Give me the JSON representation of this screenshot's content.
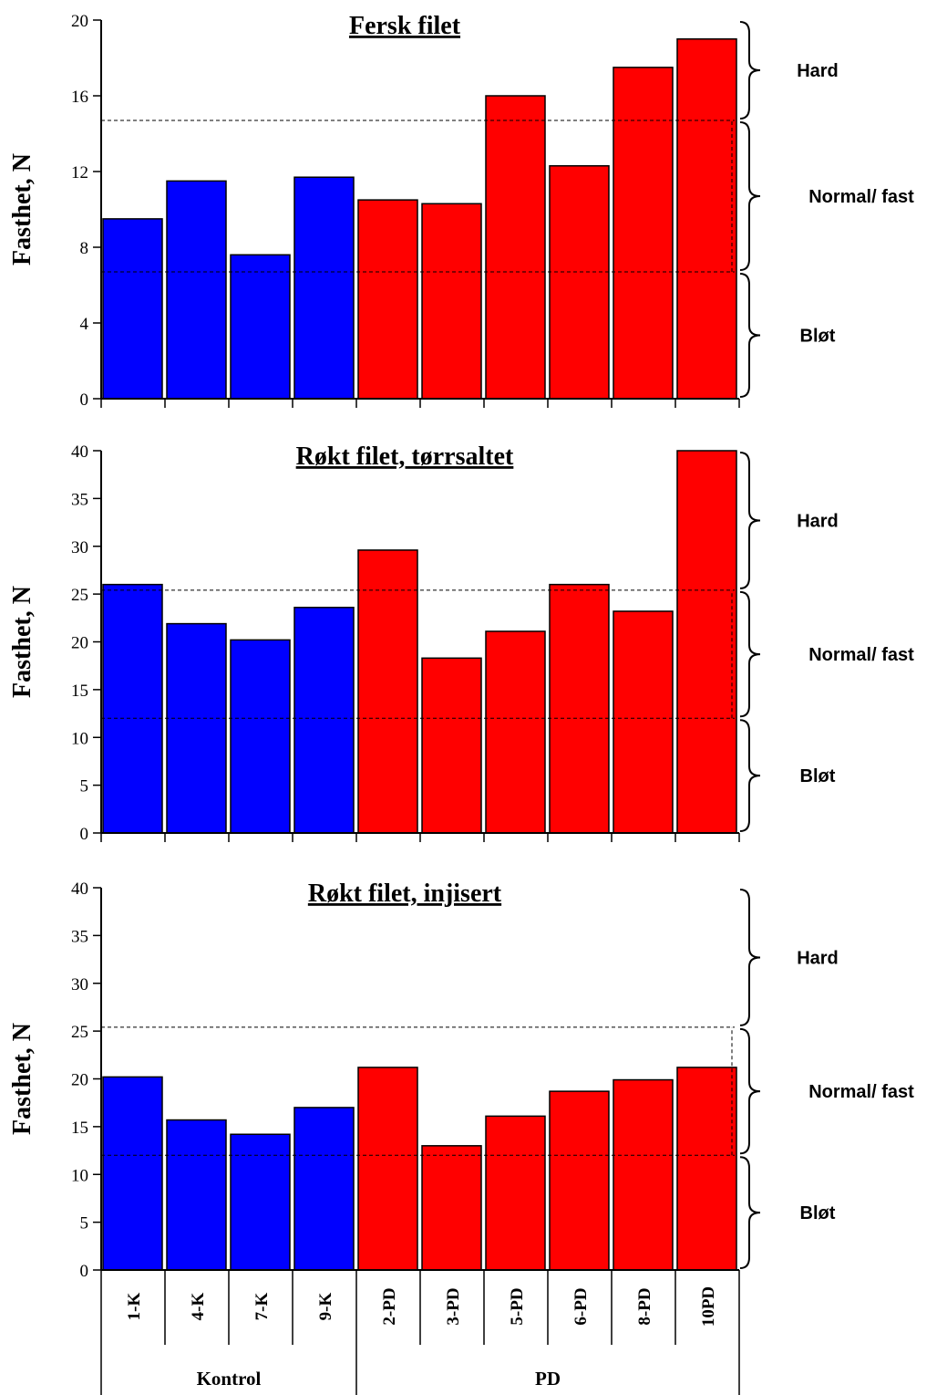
{
  "chart_data": [
    {
      "type": "bar",
      "title": "Fersk filet",
      "ylabel": "Fasthet, N",
      "ylim": [
        0,
        20
      ],
      "yticks": [
        0,
        4,
        8,
        12,
        16,
        20
      ],
      "categories": [
        "1-K",
        "4-K",
        "7-K",
        "9-K",
        "2-PD",
        "3-PD",
        "5-PD",
        "6-PD",
        "8-PD",
        "10PD"
      ],
      "values": [
        9.5,
        11.5,
        7.6,
        11.7,
        10.5,
        10.3,
        16.0,
        12.3,
        17.5,
        19.0
      ],
      "thresholds": [
        6.7,
        14.7
      ],
      "zones": [
        {
          "label": "Hard",
          "from": 14.7,
          "to": 20
        },
        {
          "label": "Normal/ fast",
          "from": 6.7,
          "to": 14.7
        },
        {
          "label": "Bløt",
          "from": 0,
          "to": 6.7
        }
      ]
    },
    {
      "type": "bar",
      "title": "Røkt filet, tørrsaltet",
      "ylabel": "Fasthet, N",
      "ylim": [
        0,
        40
      ],
      "yticks": [
        0,
        5,
        10,
        15,
        20,
        25,
        30,
        35,
        40
      ],
      "categories": [
        "1-K",
        "4-K",
        "7-K",
        "9-K",
        "2-PD",
        "3-PD",
        "5-PD",
        "6-PD",
        "8-PD",
        "10PD"
      ],
      "values": [
        26.0,
        21.9,
        20.2,
        23.6,
        29.6,
        18.3,
        21.1,
        26.0,
        23.2,
        40.0
      ],
      "thresholds": [
        12.0,
        25.4
      ],
      "zones": [
        {
          "label": "Hard",
          "from": 25.4,
          "to": 40
        },
        {
          "label": "Normal/ fast",
          "from": 12.0,
          "to": 25.4
        },
        {
          "label": "Bløt",
          "from": 0,
          "to": 12.0
        }
      ]
    },
    {
      "type": "bar",
      "title": "Røkt filet, injisert",
      "ylabel": "Fasthet, N",
      "ylim": [
        0,
        40
      ],
      "yticks": [
        0,
        5,
        10,
        15,
        20,
        25,
        30,
        35,
        40
      ],
      "categories": [
        "1-K",
        "4-K",
        "7-K",
        "9-K",
        "2-PD",
        "3-PD",
        "5-PD",
        "6-PD",
        "8-PD",
        "10PD"
      ],
      "values": [
        20.2,
        15.7,
        14.2,
        17.0,
        21.2,
        13.0,
        16.1,
        18.7,
        19.9,
        21.2
      ],
      "thresholds": [
        12.0,
        25.4
      ],
      "zones": [
        {
          "label": "Hard",
          "from": 25.4,
          "to": 40
        },
        {
          "label": "Normal/ fast",
          "from": 12.0,
          "to": 25.4
        },
        {
          "label": "Bløt",
          "from": 0,
          "to": 12.0
        }
      ]
    }
  ],
  "groups": [
    {
      "label": "Kontrol",
      "count": 4
    },
    {
      "label": "PD",
      "count": 6
    }
  ],
  "colors": {
    "kontrol": "#0000ff",
    "pd": "#ff0000",
    "axis": "#000000"
  }
}
